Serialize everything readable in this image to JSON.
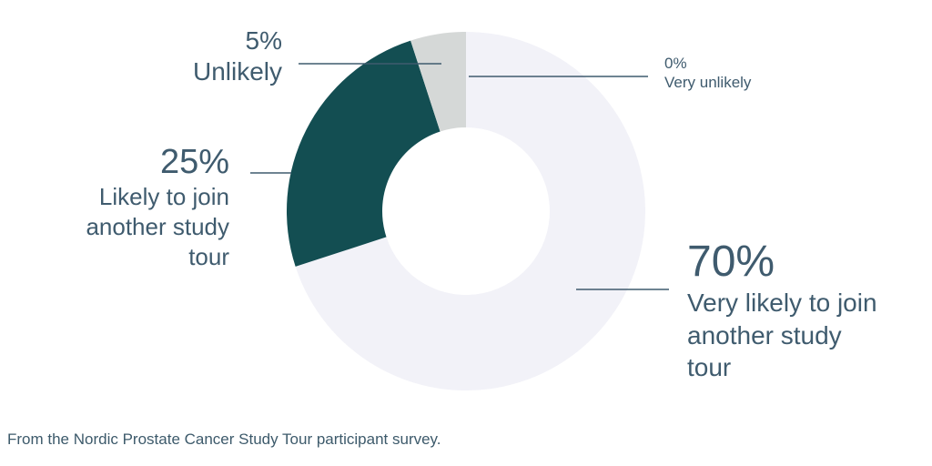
{
  "chart_data": {
    "type": "donut",
    "categories": [
      "Very likely to join another study tour",
      "Likely to join another study tour",
      "Unlikely",
      "Very unlikely"
    ],
    "values": [
      70,
      25,
      5,
      0
    ],
    "value_labels": [
      "70%",
      "25%",
      "5%",
      "0%"
    ],
    "colors": [
      "#f2f2f8",
      "#134e52",
      "#d5d8d7",
      "#bfc3c2"
    ],
    "caption": "From the Nordic Prostate Cancer Study Tour participant survey."
  }
}
